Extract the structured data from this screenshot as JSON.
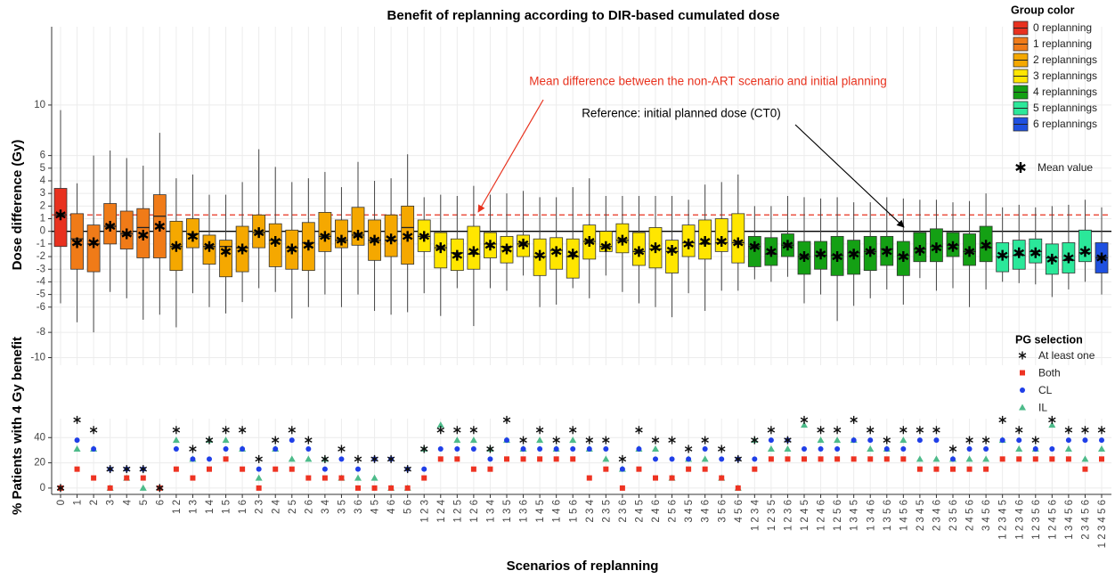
{
  "chart_data": [
    {
      "type": "box",
      "title": "Benefit of replanning according to DIR-based cumulated dose",
      "y_label": "Dose difference (Gy)",
      "ylim": [
        -10.6,
        16.2
      ],
      "yticks": [
        10,
        6,
        5,
        4,
        3,
        2,
        1,
        0,
        -1,
        -2,
        -3,
        -4,
        -5,
        -6,
        -8,
        -10
      ],
      "grid": true,
      "legend_title": "Group color",
      "mean_label": "Mean value",
      "hlines": [
        {
          "value": 0,
          "color": "#000000",
          "dash": false
        },
        {
          "value": 1.3,
          "color": "#e8321e",
          "dash": true
        }
      ],
      "annotations": [
        {
          "text": "Mean difference between the non-ART scenario and initial planning",
          "color": "#e8321e"
        },
        {
          "text": "Reference: initial planned dose (CT0)",
          "color": "#000000"
        }
      ],
      "series": [
        {
          "name": "0 replanning",
          "color": "#e8311f",
          "categories": [
            "0"
          ],
          "low": [
            -5.7
          ],
          "q1": [
            -1.2
          ],
          "median": [
            1.3
          ],
          "q3": [
            3.4
          ],
          "high": [
            9.6
          ],
          "mean": [
            1.3
          ]
        },
        {
          "name": "1 replanning",
          "color": "#f07b18",
          "categories": [
            "1",
            "2",
            "3",
            "4",
            "5",
            "6"
          ],
          "low": [
            -7.2,
            -8.0,
            -4.8,
            -5.3,
            -7.0,
            -6.6
          ],
          "q1": [
            -3.0,
            -3.2,
            -1.0,
            -1.4,
            -2.1,
            -2.1
          ],
          "median": [
            -0.6,
            -1.0,
            0.4,
            -0.2,
            0.3,
            1.2
          ],
          "q3": [
            1.4,
            0.5,
            2.2,
            1.6,
            1.8,
            2.9
          ],
          "high": [
            3.8,
            6.0,
            6.4,
            5.8,
            5.2,
            7.8
          ],
          "mean": [
            -0.9,
            -0.9,
            0.4,
            -0.2,
            -0.3,
            0.4
          ]
        },
        {
          "name": "2 replannings",
          "color": "#f5a800",
          "categories": [
            "1 2",
            "1 3",
            "1 4",
            "1 5",
            "1 6",
            "2 3",
            "2 4",
            "2 5",
            "2 6",
            "3 4",
            "3 5",
            "3 6",
            "4 5",
            "4 6",
            "5 6"
          ],
          "low": [
            -7.6,
            -4.9,
            -6.0,
            -6.5,
            -5.6,
            -4.5,
            -4.8,
            -6.9,
            -6.0,
            -5.0,
            -6.0,
            -5.0,
            -6.3,
            -6.6,
            -6.4
          ],
          "q1": [
            -3.1,
            -1.3,
            -2.6,
            -3.6,
            -3.2,
            -1.3,
            -2.8,
            -3.0,
            -3.1,
            -1.6,
            -1.3,
            -1.1,
            -2.3,
            -2.0,
            -2.6
          ],
          "median": [
            -1.2,
            -0.2,
            -1.2,
            -1.2,
            -1.3,
            -0.1,
            -0.7,
            -1.3,
            -0.9,
            -0.4,
            -0.7,
            -0.3,
            -0.7,
            -0.7,
            0.3
          ],
          "q3": [
            0.8,
            1.0,
            -0.3,
            -0.7,
            0.4,
            1.3,
            0.6,
            0.1,
            0.7,
            1.5,
            0.9,
            1.9,
            0.9,
            1.3,
            2.0
          ],
          "high": [
            4.2,
            4.5,
            2.9,
            2.9,
            3.9,
            6.5,
            5.1,
            3.9,
            4.2,
            4.7,
            3.5,
            5.5,
            4.0,
            4.2,
            6.1
          ],
          "mean": [
            -1.2,
            -0.4,
            -1.2,
            -1.6,
            -1.4,
            -0.1,
            -0.8,
            -1.4,
            -1.1,
            -0.4,
            -0.7,
            -0.3,
            -0.7,
            -0.6,
            -0.4
          ]
        },
        {
          "name": "3 replannings",
          "color": "#ffe600",
          "categories": [
            "1 2 3",
            "1 2 4",
            "1 2 5",
            "1 2 6",
            "1 3 4",
            "1 3 5",
            "1 3 6",
            "1 4 5",
            "1 4 6",
            "1 5 6",
            "2 3 4",
            "2 3 5",
            "2 3 6",
            "2 4 5",
            "2 4 6",
            "2 5 6",
            "3 4 5",
            "3 4 6",
            "3 5 6",
            "4 5 6"
          ],
          "low": [
            -4.9,
            -6.7,
            -4.5,
            -7.5,
            -4.5,
            -4.7,
            -3.5,
            -6.0,
            -5.8,
            -4.5,
            -5.3,
            -3.5,
            -4.8,
            -5.7,
            -6.0,
            -6.8,
            -4.9,
            -6.3,
            -4.7,
            -4.7
          ],
          "q1": [
            -1.6,
            -2.9,
            -3.1,
            -3.0,
            -2.1,
            -2.5,
            -2.0,
            -3.5,
            -3.0,
            -3.7,
            -2.2,
            -1.6,
            -1.7,
            -2.7,
            -2.9,
            -3.3,
            -2.0,
            -2.2,
            -1.6,
            -2.5
          ],
          "median": [
            -0.4,
            -1.3,
            -1.7,
            -1.8,
            -1.0,
            -1.2,
            -1.0,
            -2.0,
            -1.5,
            -2.0,
            -0.8,
            -1.2,
            -0.7,
            -1.6,
            -1.4,
            -1.6,
            -0.9,
            -1.0,
            -0.9,
            -0.9
          ],
          "q3": [
            0.9,
            -0.1,
            -0.6,
            0.4,
            -0.1,
            -0.4,
            -0.3,
            -0.6,
            -0.5,
            -0.6,
            0.5,
            0.0,
            0.6,
            -0.1,
            0.3,
            -0.7,
            0.5,
            0.9,
            1.0,
            1.4
          ],
          "high": [
            2.7,
            2.9,
            2.8,
            3.6,
            2.9,
            3.0,
            3.2,
            2.7,
            2.7,
            3.5,
            4.2,
            2.8,
            2.8,
            2.8,
            2.8,
            2.8,
            2.5,
            3.7,
            3.9,
            4.5
          ],
          "mean": [
            -0.4,
            -1.3,
            -1.9,
            -1.6,
            -1.1,
            -1.4,
            -1.0,
            -1.9,
            -1.6,
            -1.8,
            -0.8,
            -1.2,
            -0.7,
            -1.6,
            -1.3,
            -1.5,
            -1.0,
            -0.8,
            -0.8,
            -0.9
          ]
        },
        {
          "name": "4 replannings",
          "color": "#14a014",
          "categories": [
            "1 2 3 4",
            "1 2 3 5",
            "1 2 3 6",
            "1 2 4 5",
            "1 2 4 6",
            "1 2 5 6",
            "1 3 4 5",
            "1 3 4 6",
            "1 3 5 6",
            "1 4 5 6",
            "2 3 4 5",
            "2 3 4 6",
            "2 3 5 6",
            "2 4 5 6",
            "3 4 5 6"
          ],
          "low": [
            -3.8,
            -4.0,
            -3.6,
            -5.7,
            -5.0,
            -7.1,
            -5.9,
            -5.3,
            -4.6,
            -5.8,
            -3.7,
            -4.7,
            -4.5,
            -6.0,
            -4.6
          ],
          "q1": [
            -2.8,
            -2.7,
            -2.0,
            -3.4,
            -3.0,
            -3.5,
            -3.4,
            -3.1,
            -2.7,
            -3.5,
            -2.4,
            -2.4,
            -2.0,
            -2.7,
            -2.4
          ],
          "median": [
            -1.2,
            -1.8,
            -1.1,
            -2.0,
            -1.9,
            -1.9,
            -1.7,
            -1.6,
            -1.4,
            -1.9,
            -1.4,
            -1.2,
            -1.1,
            -1.6,
            -1.3
          ],
          "q3": [
            -0.4,
            -0.5,
            -0.2,
            -0.8,
            -0.8,
            -0.4,
            -0.7,
            -0.4,
            -0.4,
            -0.8,
            -0.1,
            0.2,
            -0.1,
            -0.2,
            0.4
          ],
          "high": [
            2.0,
            2.0,
            2.8,
            2.7,
            2.6,
            2.7,
            2.3,
            2.3,
            2.7,
            2.6,
            2.5,
            2.5,
            2.3,
            2.4,
            3.0
          ],
          "mean": [
            -1.2,
            -1.6,
            -1.1,
            -2.0,
            -1.8,
            -2.0,
            -1.8,
            -1.6,
            -1.6,
            -2.0,
            -1.5,
            -1.3,
            -1.2,
            -1.6,
            -1.1
          ]
        },
        {
          "name": "5 replannings",
          "color": "#2be89a",
          "categories": [
            "1 2 3 4 5",
            "1 2 3 4 6",
            "1 2 3 5 6",
            "1 2 4 5 6",
            "1 3 4 5 6",
            "2 3 4 5 6"
          ],
          "low": [
            -4.0,
            -4.1,
            -4.2,
            -5.2,
            -4.6,
            -4.0
          ],
          "q1": [
            -3.2,
            -3.0,
            -2.5,
            -3.4,
            -3.3,
            -2.4
          ],
          "median": [
            -2.0,
            -1.9,
            -1.6,
            -2.1,
            -2.3,
            -1.7
          ],
          "q3": [
            -0.9,
            -0.7,
            -0.6,
            -1.0,
            -0.9,
            0.1
          ],
          "high": [
            1.9,
            2.1,
            1.9,
            2.0,
            2.1,
            2.5
          ],
          "mean": [
            -1.9,
            -1.7,
            -1.7,
            -2.2,
            -2.1,
            -1.6
          ]
        },
        {
          "name": "6 replannings",
          "color": "#1f50e0",
          "categories": [
            "1 2 3 4 5 6"
          ],
          "low": [
            -5.0
          ],
          "q1": [
            -3.3
          ],
          "median": [
            -2.1
          ],
          "q3": [
            -0.9
          ],
          "high": [
            1.9
          ],
          "mean": [
            -2.1
          ]
        }
      ]
    },
    {
      "type": "scatter",
      "x_label": "Scenarios of replanning",
      "y_label": "% Patients with 4 Gy benefit",
      "ylim": [
        -5,
        55
      ],
      "yticks": [
        0,
        20,
        40
      ],
      "grid": true,
      "legend_title": "PG selection",
      "categories": [
        "0",
        "1",
        "2",
        "3",
        "4",
        "5",
        "6",
        "1 2",
        "1 3",
        "1 4",
        "1 5",
        "1 6",
        "2 3",
        "2 4",
        "2 5",
        "2 6",
        "3 4",
        "3 5",
        "3 6",
        "4 5",
        "4 6",
        "5 6",
        "1 2 3",
        "1 2 4",
        "1 2 5",
        "1 2 6",
        "1 3 4",
        "1 3 5",
        "1 3 6",
        "1 4 5",
        "1 4 6",
        "1 5 6",
        "2 3 4",
        "2 3 5",
        "2 3 6",
        "2 4 5",
        "2 4 6",
        "2 5 6",
        "3 4 5",
        "3 4 6",
        "3 5 6",
        "4 5 6",
        "1 2 3 4",
        "1 2 3 5",
        "1 2 3 6",
        "1 2 4 5",
        "1 2 4 6",
        "1 2 5 6",
        "1 3 4 5",
        "1 3 4 6",
        "1 3 5 6",
        "1 4 5 6",
        "2 3 4 5",
        "2 3 4 6",
        "2 3 5 6",
        "2 4 5 6",
        "3 4 5 6",
        "1 2 3 4 5",
        "1 2 3 4 6",
        "1 2 3 5 6",
        "1 2 4 5 6",
        "1 3 4 5 6",
        "2 3 4 5 6",
        "1 2 3 4 5 6"
      ],
      "series": [
        {
          "name": "At least one",
          "color": "#111111",
          "marker": "asterisk",
          "values": [
            0,
            54,
            46,
            15,
            15,
            15,
            0,
            46,
            31,
            38,
            46,
            46,
            23,
            38,
            46,
            38,
            23,
            31,
            23,
            23,
            23,
            15,
            31,
            46,
            46,
            46,
            31,
            54,
            38,
            46,
            38,
            46,
            38,
            38,
            23,
            46,
            38,
            38,
            31,
            38,
            31,
            23,
            38,
            46,
            38,
            54,
            46,
            46,
            54,
            46,
            38,
            46,
            46,
            46,
            31,
            38,
            38,
            54,
            46,
            38,
            54,
            46,
            46,
            46
          ]
        },
        {
          "name": "Both",
          "color": "#ee3322",
          "marker": "square",
          "values": [
            0,
            15,
            8,
            0,
            8,
            8,
            0,
            15,
            8,
            15,
            23,
            15,
            0,
            15,
            15,
            8,
            8,
            8,
            0,
            0,
            0,
            0,
            8,
            23,
            23,
            15,
            15,
            23,
            23,
            23,
            23,
            23,
            8,
            15,
            0,
            15,
            8,
            8,
            15,
            15,
            8,
            0,
            15,
            23,
            23,
            23,
            23,
            23,
            23,
            23,
            23,
            23,
            15,
            15,
            15,
            15,
            15,
            23,
            23,
            23,
            23,
            23,
            15,
            23
          ]
        },
        {
          "name": "CL",
          "color": "#1f3fe8",
          "marker": "circle",
          "values": [
            0,
            38,
            31,
            15,
            15,
            15,
            0,
            31,
            23,
            23,
            31,
            31,
            15,
            31,
            38,
            31,
            15,
            23,
            15,
            23,
            23,
            15,
            15,
            31,
            31,
            31,
            23,
            38,
            31,
            31,
            31,
            31,
            31,
            31,
            15,
            31,
            23,
            23,
            23,
            31,
            23,
            23,
            23,
            38,
            38,
            31,
            31,
            31,
            38,
            38,
            31,
            31,
            38,
            38,
            23,
            31,
            31,
            38,
            38,
            31,
            31,
            38,
            38,
            38
          ]
        },
        {
          "name": "IL",
          "color": "#4dbb8a",
          "marker": "triangle",
          "values": [
            0,
            31,
            31,
            0,
            8,
            0,
            0,
            38,
            23,
            38,
            38,
            31,
            8,
            31,
            23,
            23,
            23,
            8,
            8,
            8,
            0,
            0,
            31,
            50,
            38,
            38,
            31,
            38,
            31,
            38,
            31,
            38,
            31,
            23,
            15,
            31,
            31,
            8,
            23,
            23,
            8,
            0,
            38,
            31,
            31,
            50,
            38,
            38,
            38,
            31,
            31,
            38,
            23,
            23,
            23,
            23,
            23,
            38,
            31,
            31,
            50,
            31,
            23,
            31
          ]
        }
      ]
    }
  ]
}
